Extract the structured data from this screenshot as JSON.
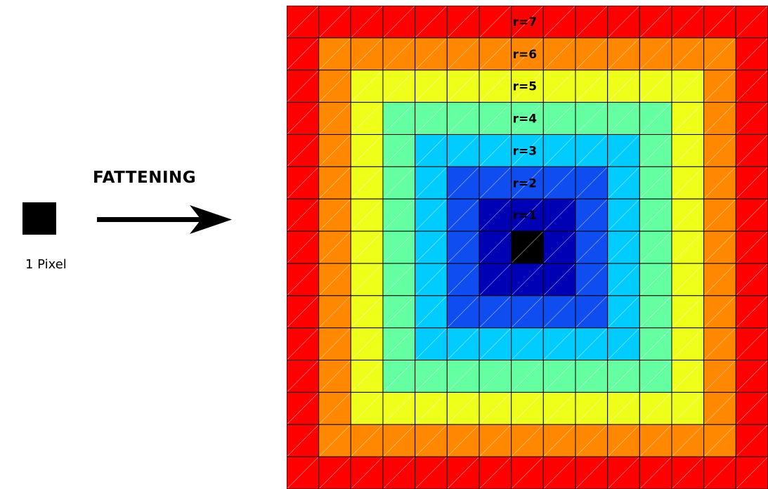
{
  "pixel": {
    "label": "1 Pixel",
    "color": "#000000"
  },
  "process": {
    "label": "FATTENING"
  },
  "grid": {
    "size": 15,
    "center_color": "#000000",
    "cell_border_color": "#000000",
    "diagonal_color": "#ffffff",
    "rings": [
      {
        "label": "r=1",
        "color": "#0000b4"
      },
      {
        "label": "r=2",
        "color": "#0f4df1"
      },
      {
        "label": "r=3",
        "color": "#00ccff"
      },
      {
        "label": "r=4",
        "color": "#64ffa0"
      },
      {
        "label": "r=5",
        "color": "#eeff1a"
      },
      {
        "label": "r=6",
        "color": "#ff8800"
      },
      {
        "label": "r=7",
        "color": "#ff0000"
      }
    ]
  }
}
